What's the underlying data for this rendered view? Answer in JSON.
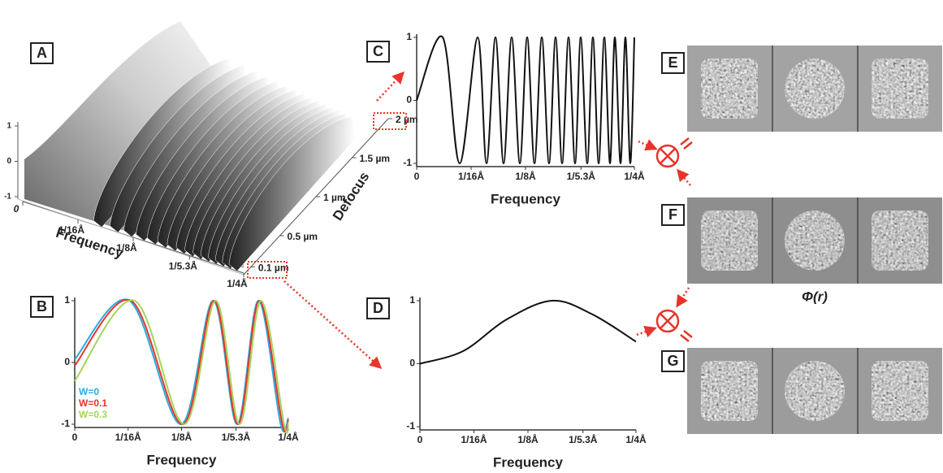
{
  "chart_data": [
    {
      "type": "surface",
      "label": "A",
      "xlabel": "Frequency",
      "ylabel": "Defocus",
      "xlim": [
        0,
        0.25
      ],
      "xticks": [
        0,
        {
          "value": 0.0625,
          "label": "1/16Å"
        },
        {
          "value": 0.125,
          "label": "1/8Å"
        },
        {
          "value": 0.18868,
          "label": "1/5.3Å"
        },
        {
          "value": 0.25,
          "label": "1/4Å"
        }
      ],
      "ylim": [
        0,
        2
      ],
      "yticks": [
        {
          "value": 0.1,
          "label": "0.1 µm"
        },
        {
          "value": 0.5,
          "label": "0.5 µm"
        },
        {
          "value": 1,
          "label": "1 µm"
        },
        {
          "value": 1.5,
          "label": "1.5 µm"
        },
        {
          "value": 2,
          "label": "2 µm"
        }
      ],
      "zlim": [
        -1,
        1
      ],
      "zticks": [
        -1,
        0,
        1
      ]
    },
    {
      "type": "line",
      "label": "B",
      "xlabel": "Frequency",
      "xlim": [
        0,
        0.25
      ],
      "ylim": [
        -1,
        1
      ],
      "xticks": [
        0,
        {
          "value": 0.0625,
          "label": "1/16Å"
        },
        {
          "value": 0.125,
          "label": "1/8Å"
        },
        {
          "value": 0.18868,
          "label": "1/5.3Å"
        },
        {
          "value": 0.25,
          "label": "1/4Å"
        }
      ],
      "yticks": [
        -1,
        0,
        1
      ],
      "series": [
        {
          "name": "W=0",
          "color": "#29abe2",
          "x": [
            0,
            0.064,
            0.124,
            0.162,
            0.19,
            0.215,
            0.241,
            0.25
          ],
          "values": [
            0.05,
            1,
            -1,
            1,
            -1,
            1,
            -1,
            -0.9
          ]
        },
        {
          "name": "W=0.1",
          "color": "#e8342a",
          "x": [
            0,
            0.066,
            0.126,
            0.163,
            0.191,
            0.216,
            0.243,
            0.25
          ],
          "values": [
            -0.05,
            1,
            -1,
            1,
            -1,
            1,
            -1,
            -0.92
          ]
        },
        {
          "name": "W=0.3",
          "color": "#a6d55a",
          "x": [
            0,
            0.07,
            0.128,
            0.165,
            0.193,
            0.218,
            0.245,
            0.25
          ],
          "values": [
            -0.3,
            1,
            -1,
            1,
            -1,
            1,
            -1,
            -0.97
          ]
        }
      ]
    },
    {
      "type": "line",
      "label": "C",
      "xlabel": "Frequency",
      "xlim": [
        0,
        0.25
      ],
      "ylim": [
        -1,
        1
      ],
      "xticks": [
        0,
        {
          "value": 0.0625,
          "label": "1/16Å"
        },
        {
          "value": 0.125,
          "label": "1/8Å"
        },
        {
          "value": 0.18868,
          "label": "1/5.3Å"
        },
        {
          "value": 0.25,
          "label": "1/4Å"
        }
      ],
      "yticks": [
        -1,
        0,
        1
      ],
      "color": "#111111",
      "x": [
        0,
        0.0299,
        0.0494,
        0.07,
        0.0802,
        0.0905,
        0.0998,
        0.1091,
        0.1185,
        0.1269,
        0.1353,
        0.1437,
        0.152,
        0.1595,
        0.167,
        0.1744,
        0.1819,
        0.1884,
        0.1959,
        0.2024,
        0.209,
        0.2155,
        0.222,
        0.2276,
        0.2341,
        0.2397,
        0.2453,
        0.25
      ],
      "values": [
        0,
        1,
        -1,
        1,
        -1,
        1,
        -1,
        1,
        -1,
        1,
        -1,
        1,
        -1,
        1,
        -1,
        1,
        -1,
        1,
        -1,
        1,
        -1,
        1,
        -1,
        1,
        -1,
        1,
        -1,
        1
      ]
    },
    {
      "type": "line",
      "label": "D",
      "xlabel": "Frequency",
      "xlim": [
        0,
        0.25
      ],
      "ylim": [
        -1,
        1
      ],
      "xticks": [
        0,
        {
          "value": 0.0625,
          "label": "1/16Å"
        },
        {
          "value": 0.125,
          "label": "1/8Å"
        },
        {
          "value": 0.18868,
          "label": "1/5.3Å"
        },
        {
          "value": 0.25,
          "label": "1/4Å"
        }
      ],
      "yticks": [
        -1,
        0,
        1
      ],
      "color": "#111111",
      "x": [
        0,
        0.05,
        0.1,
        0.153,
        0.2,
        0.25
      ],
      "values": [
        0,
        0.2,
        0.7,
        1,
        0.78,
        0.35
      ]
    }
  ],
  "images": [
    {
      "label": "E"
    },
    {
      "label": "F"
    },
    {
      "label": "G"
    }
  ],
  "phi_label": "Φ(r)"
}
